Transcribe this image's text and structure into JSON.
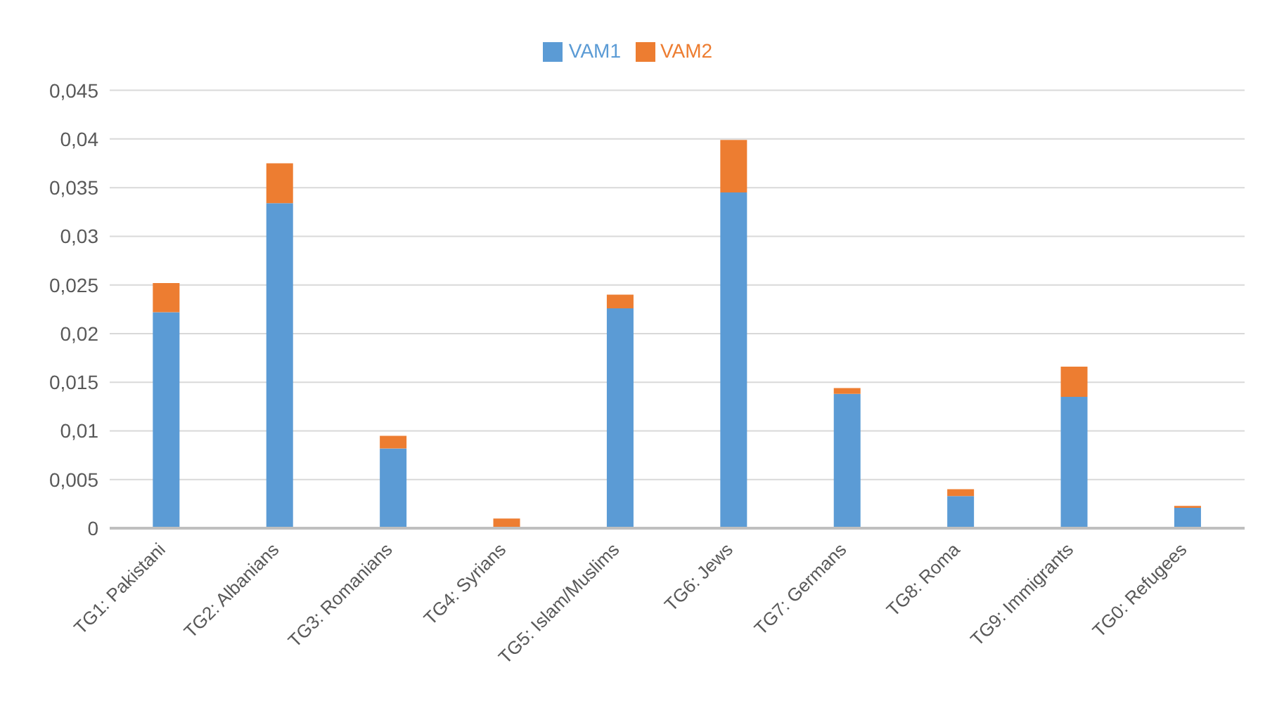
{
  "chart_data": {
    "type": "bar",
    "stacked": true,
    "categories": [
      "TG1: Pakistani",
      "TG2: Albanians",
      "TG3: Romanians",
      "TG4: Syrians",
      "TG5: Islam/Muslims",
      "TG6: Jews",
      "TG7: Germans",
      "TG8: Roma",
      "TG9: Immigrants",
      "TG0: Refugees"
    ],
    "series": [
      {
        "name": "VAM1",
        "color": "#5b9bd5",
        "values": [
          0.0222,
          0.0334,
          0.0082,
          0,
          0.0226,
          0.0345,
          0.0138,
          0.0033,
          0.0135,
          0.0021
        ]
      },
      {
        "name": "VAM2",
        "color": "#ed7d31",
        "values": [
          0.003,
          0.0041,
          0.0013,
          0.001,
          0.0014,
          0.0054,
          0.0006,
          0.0007,
          0.0031,
          0.0002
        ]
      }
    ],
    "ylim": [
      0,
      0.045
    ],
    "yticks": [
      {
        "value": 0,
        "label": "0"
      },
      {
        "value": 0.005,
        "label": "0,005"
      },
      {
        "value": 0.01,
        "label": "0,01"
      },
      {
        "value": 0.015,
        "label": "0,015"
      },
      {
        "value": 0.02,
        "label": "0,02"
      },
      {
        "value": 0.025,
        "label": "0,025"
      },
      {
        "value": 0.03,
        "label": "0,03"
      },
      {
        "value": 0.035,
        "label": "0,035"
      },
      {
        "value": 0.04,
        "label": "0,04"
      },
      {
        "value": 0.045,
        "label": "0,045"
      }
    ],
    "grid": "y",
    "legend": "top"
  }
}
